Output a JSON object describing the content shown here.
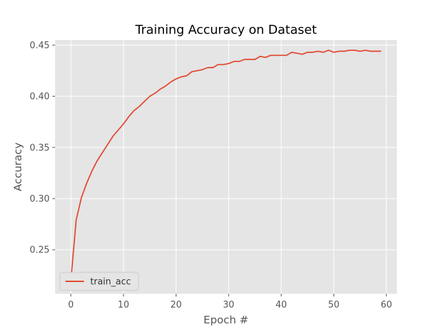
{
  "chart_data": {
    "type": "line",
    "title": "Training Accuracy on Dataset",
    "xlabel": "Epoch #",
    "ylabel": "Accuracy",
    "xlim": [
      -3,
      62
    ],
    "ylim": [
      0.207,
      0.455
    ],
    "x_ticks": [
      0,
      10,
      20,
      30,
      40,
      50,
      60
    ],
    "y_ticks": [
      0.25,
      0.3,
      0.35,
      0.4,
      0.45
    ],
    "x_tick_labels": [
      "0",
      "10",
      "20",
      "30",
      "40",
      "50",
      "60"
    ],
    "y_tick_labels": [
      "0.25",
      "0.30",
      "0.35",
      "0.40",
      "0.45"
    ],
    "grid": true,
    "legend_position": "lower-left",
    "colors": {
      "plot_background": "#E5E5E5",
      "grid": "#FFFFFF",
      "series": "#E24A33"
    },
    "series": [
      {
        "name": "train_acc",
        "x": [
          0,
          1,
          2,
          3,
          4,
          5,
          6,
          7,
          8,
          9,
          10,
          11,
          12,
          13,
          14,
          15,
          16,
          17,
          18,
          19,
          20,
          21,
          22,
          23,
          24,
          25,
          26,
          27,
          28,
          29,
          30,
          31,
          32,
          33,
          34,
          35,
          36,
          37,
          38,
          39,
          40,
          41,
          42,
          43,
          44,
          45,
          46,
          47,
          48,
          49,
          50,
          51,
          52,
          53,
          54,
          55,
          56,
          57,
          58,
          59
        ],
        "values": [
          0.22,
          0.279,
          0.301,
          0.315,
          0.327,
          0.337,
          0.345,
          0.353,
          0.361,
          0.367,
          0.373,
          0.38,
          0.386,
          0.39,
          0.395,
          0.4,
          0.403,
          0.407,
          0.41,
          0.414,
          0.417,
          0.419,
          0.42,
          0.424,
          0.425,
          0.426,
          0.428,
          0.428,
          0.431,
          0.431,
          0.432,
          0.434,
          0.434,
          0.436,
          0.436,
          0.436,
          0.439,
          0.438,
          0.44,
          0.44,
          0.44,
          0.44,
          0.443,
          0.442,
          0.441,
          0.443,
          0.443,
          0.444,
          0.443,
          0.445,
          0.443,
          0.444,
          0.444,
          0.445,
          0.445,
          0.444,
          0.445,
          0.444,
          0.444,
          0.444
        ]
      }
    ]
  }
}
